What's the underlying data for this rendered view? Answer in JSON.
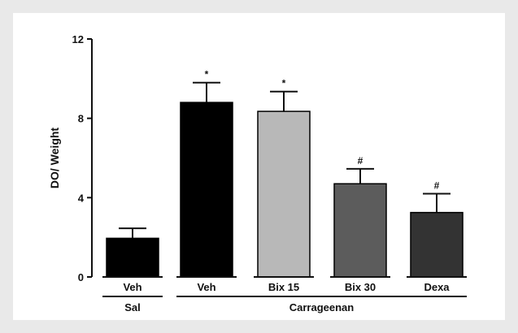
{
  "chart_data": {
    "type": "bar",
    "ylabel": "DO/ Weight",
    "ylim": [
      0,
      12
    ],
    "yticks": [
      "0",
      "4",
      "8",
      "12"
    ],
    "categories": [
      "Veh",
      "Veh",
      "Bix 15",
      "Bix 30",
      "Dexa"
    ],
    "values": [
      1.95,
      8.8,
      8.35,
      4.7,
      3.25
    ],
    "errors": [
      0.5,
      1.0,
      1.0,
      0.75,
      0.95
    ],
    "significance": [
      "",
      "*",
      "*",
      "#",
      "#"
    ],
    "bar_colors": [
      "#000000",
      "#000000",
      "#b8b8b8",
      "#5c5c5c",
      "#333333"
    ],
    "groups": [
      {
        "label": "Sal",
        "members": [
          0
        ]
      },
      {
        "label": "Carrageenan",
        "members": [
          1,
          2,
          3,
          4
        ]
      }
    ]
  }
}
